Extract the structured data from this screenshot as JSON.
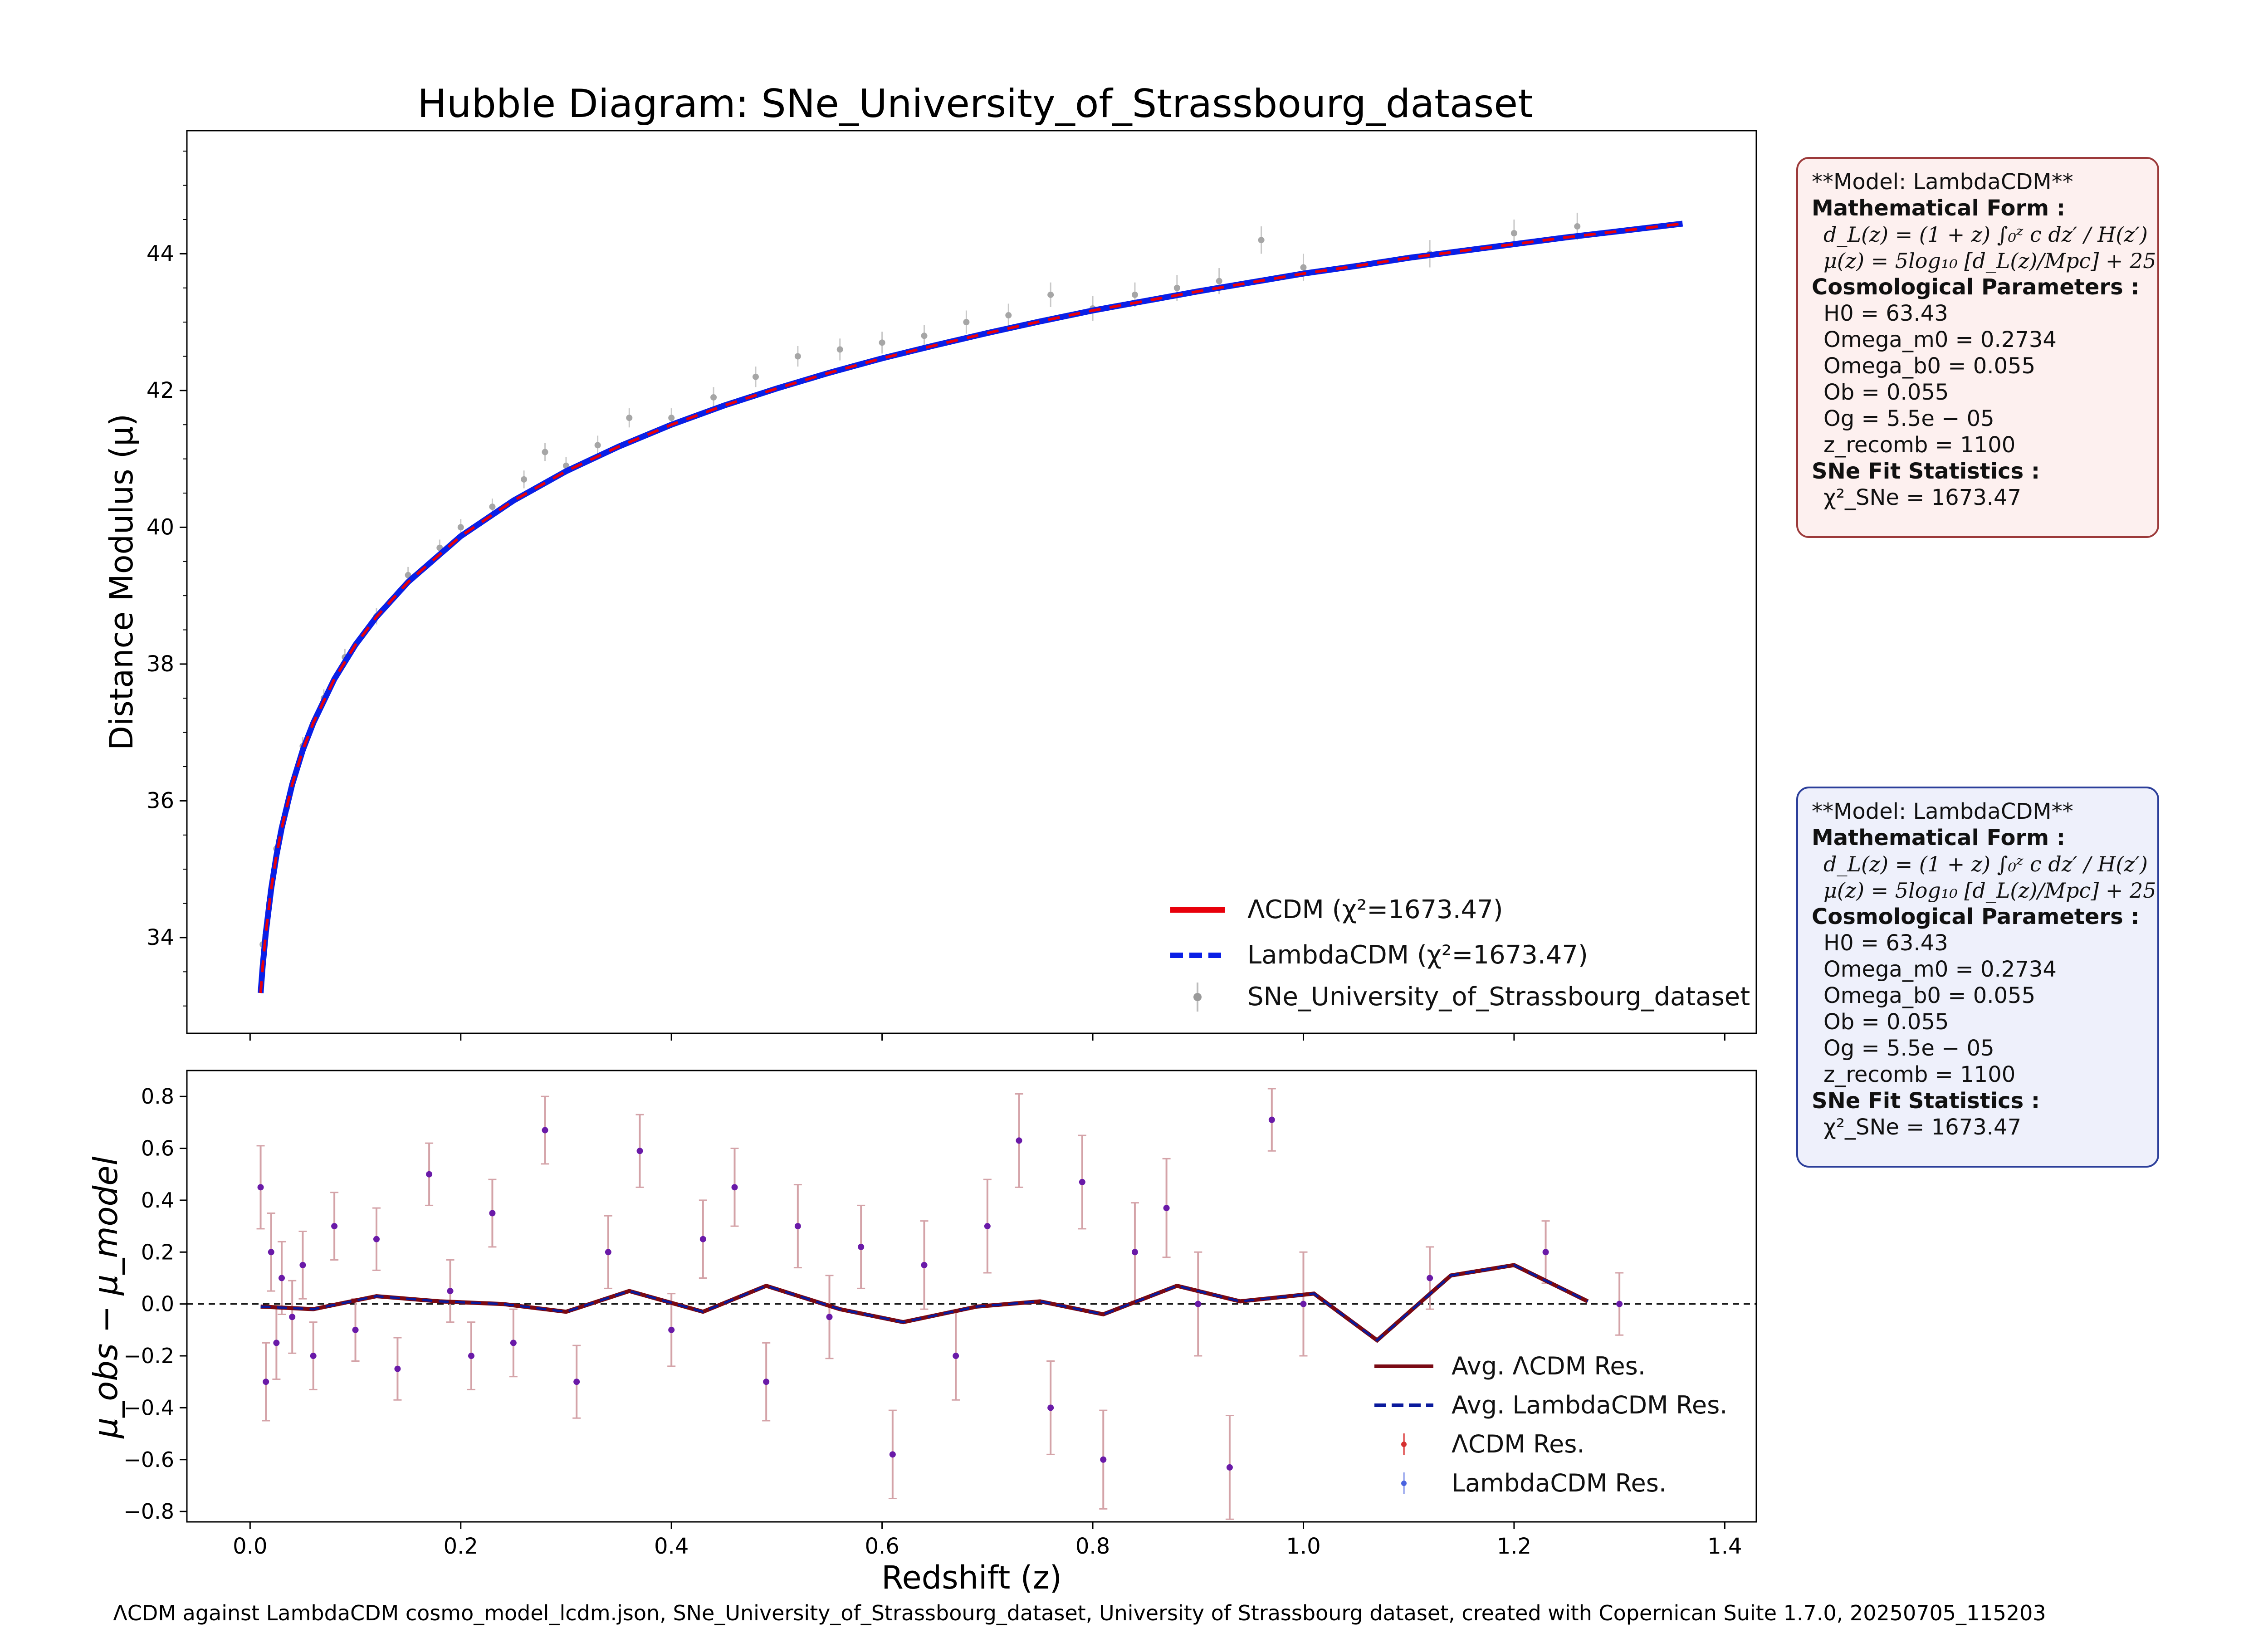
{
  "figure": {
    "footer": "ΛCDM against LambdaCDM cosmo_model_lcdm.json, SNe_University_of_Strassbourg_dataset, University of Strassbourg dataset, created with Copernican Suite 1.7.0, 20250705_115203"
  },
  "colors": {
    "lcdm_line": "#e8000b",
    "alt_line": "#0a1fe6",
    "data_points": "#a6a6a6",
    "residual_errbar": "#d4a3a8",
    "residual_point": "#6a1aa8",
    "avg_lcdm": "#7a0a14",
    "avg_alt": "#0a1a9c",
    "box_top_bg": "#fdf0ef",
    "box_top_border": "#9c3a3a",
    "box_bottom_bg": "#eef0fb",
    "box_bottom_border": "#2c3f9a"
  },
  "info_boxes": [
    {
      "model_line": "**Model: LambdaCDM**",
      "math_header": "Mathematical Form :",
      "eq1": "d_L(z) = (1 + z) ∫₀ᶻ c dz′ / H(z′)",
      "eq2": "μ(z) = 5log₁₀ [d_L(z)/Mpc] + 25",
      "params_header": "Cosmological Parameters :",
      "params": [
        "H0 = 63.43",
        "Omega_m0 = 0.2734",
        "Omega_b0 = 0.055",
        "Ob = 0.055",
        "Og = 5.5e − 05",
        "z_recomb = 1100"
      ],
      "stats_header": "SNe Fit Statistics :",
      "chi2": "χ²_SNe = 1673.47"
    },
    {
      "model_line": "**Model: LambdaCDM**",
      "math_header": "Mathematical Form :",
      "eq1": "d_L(z) = (1 + z) ∫₀ᶻ c dz′ / H(z′)",
      "eq2": "μ(z) = 5log₁₀ [d_L(z)/Mpc] + 25",
      "params_header": "Cosmological Parameters :",
      "params": [
        "H0 = 63.43",
        "Omega_m0 = 0.2734",
        "Omega_b0 = 0.055",
        "Ob = 0.055",
        "Og = 5.5e − 05",
        "z_recomb = 1100"
      ],
      "stats_header": "SNe Fit Statistics :",
      "chi2": "χ²_SNe = 1673.47"
    }
  ],
  "chart_data": [
    {
      "type": "scatter",
      "title": "Hubble Diagram: SNe_University_of_Strassbourg_dataset",
      "xlabel": "",
      "ylabel": "Distance Modulus (μ)",
      "xlim": [
        -0.06,
        1.43
      ],
      "ylim": [
        32.6,
        45.8
      ],
      "yticks": [
        34,
        36,
        38,
        40,
        42,
        44
      ],
      "xticks": [
        0.0,
        0.2,
        0.4,
        0.6,
        0.8,
        1.0,
        1.2,
        1.4
      ],
      "show_xtick_labels": false,
      "grid": false,
      "legend_position": "lower-right",
      "model_params": {
        "H0": 63.43,
        "Om": 0.2734
      },
      "series": [
        {
          "name": "ΛCDM (χ²=1673.47)",
          "kind": "line",
          "style": "solid"
        },
        {
          "name": "LambdaCDM (χ²=1673.47)",
          "kind": "line",
          "style": "dashed"
        },
        {
          "name": "SNe_University_of_Strassbourg_dataset",
          "kind": "errorbar-points"
        }
      ],
      "curve_z": [
        0.01,
        0.012,
        0.015,
        0.02,
        0.025,
        0.03,
        0.04,
        0.05,
        0.06,
        0.08,
        0.1,
        0.12,
        0.15,
        0.2,
        0.25,
        0.3,
        0.35,
        0.4,
        0.45,
        0.5,
        0.55,
        0.6,
        0.65,
        0.7,
        0.75,
        0.8,
        0.85,
        0.9,
        0.95,
        1.0,
        1.05,
        1.1,
        1.15,
        1.2,
        1.25,
        1.3,
        1.36
      ],
      "curve_mu": [
        33.19,
        33.59,
        34.08,
        34.71,
        35.2,
        35.6,
        36.24,
        36.74,
        37.14,
        37.78,
        38.28,
        38.69,
        39.2,
        39.87,
        40.39,
        40.82,
        41.18,
        41.5,
        41.78,
        42.03,
        42.26,
        42.47,
        42.66,
        42.84,
        43.01,
        43.17,
        43.31,
        43.45,
        43.58,
        43.71,
        43.82,
        43.94,
        44.04,
        44.14,
        44.24,
        44.33,
        44.44
      ],
      "points_z": [
        0.012,
        0.018,
        0.025,
        0.035,
        0.05,
        0.07,
        0.09,
        0.12,
        0.15,
        0.18,
        0.2,
        0.23,
        0.26,
        0.28,
        0.3,
        0.33,
        0.36,
        0.4,
        0.44,
        0.48,
        0.52,
        0.56,
        0.6,
        0.64,
        0.68,
        0.72,
        0.76,
        0.8,
        0.84,
        0.88,
        0.92,
        0.96,
        1.0,
        1.12,
        1.2,
        1.26
      ],
      "points_mu": [
        33.9,
        34.5,
        35.3,
        35.9,
        36.8,
        37.5,
        38.1,
        38.7,
        39.3,
        39.7,
        40.0,
        40.3,
        40.7,
        41.1,
        40.9,
        41.2,
        41.6,
        41.6,
        41.9,
        42.2,
        42.5,
        42.6,
        42.7,
        42.8,
        43.0,
        43.1,
        43.4,
        43.2,
        43.4,
        43.5,
        43.6,
        44.2,
        43.8,
        44.0,
        44.3,
        44.4
      ],
      "points_err": [
        0.15,
        0.15,
        0.14,
        0.14,
        0.13,
        0.13,
        0.12,
        0.12,
        0.12,
        0.12,
        0.12,
        0.12,
        0.13,
        0.13,
        0.13,
        0.14,
        0.14,
        0.14,
        0.15,
        0.15,
        0.15,
        0.16,
        0.16,
        0.16,
        0.17,
        0.17,
        0.18,
        0.18,
        0.18,
        0.19,
        0.19,
        0.2,
        0.2,
        0.2,
        0.2,
        0.2
      ]
    },
    {
      "type": "scatter",
      "title": "",
      "xlabel": "Redshift (z)",
      "ylabel": "μ_obs − μ_model",
      "xlim": [
        -0.06,
        1.43
      ],
      "ylim": [
        -0.84,
        0.9
      ],
      "yticks": [
        -0.8,
        -0.6,
        -0.4,
        -0.2,
        0.0,
        0.2,
        0.4,
        0.6,
        0.8
      ],
      "ytick_labels": [
        "−0.8",
        "−0.6",
        "−0.4",
        "−0.2",
        "0.0",
        "0.2",
        "0.4",
        "0.6",
        "0.8"
      ],
      "xticks": [
        0.0,
        0.2,
        0.4,
        0.6,
        0.8,
        1.0,
        1.2,
        1.4
      ],
      "xtick_labels": [
        "0.0",
        "0.2",
        "0.4",
        "0.6",
        "0.8",
        "1.0",
        "1.2",
        "1.4"
      ],
      "grid": false,
      "legend_position": "lower-right",
      "zero_line": true,
      "series": [
        {
          "name": "Avg. ΛCDM Res.",
          "kind": "line",
          "style": "solid"
        },
        {
          "name": "Avg. LambdaCDM Res.",
          "kind": "line",
          "style": "dashed"
        },
        {
          "name": "ΛCDM Res.",
          "kind": "errorbar-points"
        },
        {
          "name": "LambdaCDM Res.",
          "kind": "errorbar-points"
        }
      ],
      "avg_x": [
        0.01,
        0.06,
        0.12,
        0.18,
        0.24,
        0.3,
        0.36,
        0.43,
        0.49,
        0.56,
        0.62,
        0.69,
        0.75,
        0.81,
        0.88,
        0.94,
        1.01,
        1.07,
        1.14,
        1.2,
        1.27
      ],
      "avg_y": [
        -0.01,
        -0.02,
        0.03,
        0.01,
        0.0,
        -0.03,
        0.05,
        -0.03,
        0.07,
        -0.02,
        -0.07,
        -0.01,
        0.01,
        -0.04,
        0.07,
        0.01,
        0.04,
        -0.14,
        0.11,
        0.15,
        0.01
      ],
      "res_x": [
        0.01,
        0.015,
        0.02,
        0.025,
        0.03,
        0.04,
        0.05,
        0.06,
        0.08,
        0.1,
        0.12,
        0.14,
        0.17,
        0.19,
        0.21,
        0.23,
        0.25,
        0.28,
        0.31,
        0.34,
        0.37,
        0.4,
        0.43,
        0.46,
        0.49,
        0.52,
        0.55,
        0.58,
        0.61,
        0.64,
        0.67,
        0.7,
        0.73,
        0.76,
        0.79,
        0.81,
        0.84,
        0.87,
        0.9,
        0.93,
        0.97,
        1.0,
        1.12,
        1.23,
        1.3
      ],
      "res_y": [
        0.45,
        -0.3,
        0.2,
        -0.15,
        0.1,
        -0.05,
        0.15,
        -0.2,
        0.3,
        -0.1,
        0.25,
        -0.25,
        0.5,
        0.05,
        -0.2,
        0.35,
        -0.15,
        0.67,
        -0.3,
        0.2,
        0.59,
        -0.1,
        0.25,
        0.45,
        -0.3,
        0.3,
        -0.05,
        0.22,
        -0.58,
        0.15,
        -0.2,
        0.3,
        0.63,
        -0.4,
        0.47,
        -0.6,
        0.2,
        0.37,
        0.0,
        -0.63,
        0.71,
        0.0,
        0.1,
        0.2,
        0.0
      ],
      "res_err": [
        0.16,
        0.15,
        0.15,
        0.14,
        0.14,
        0.14,
        0.13,
        0.13,
        0.13,
        0.12,
        0.12,
        0.12,
        0.12,
        0.12,
        0.13,
        0.13,
        0.13,
        0.13,
        0.14,
        0.14,
        0.14,
        0.14,
        0.15,
        0.15,
        0.15,
        0.16,
        0.16,
        0.16,
        0.17,
        0.17,
        0.17,
        0.18,
        0.18,
        0.18,
        0.18,
        0.19,
        0.19,
        0.19,
        0.2,
        0.2,
        0.12,
        0.2,
        0.12,
        0.12,
        0.12
      ]
    }
  ]
}
